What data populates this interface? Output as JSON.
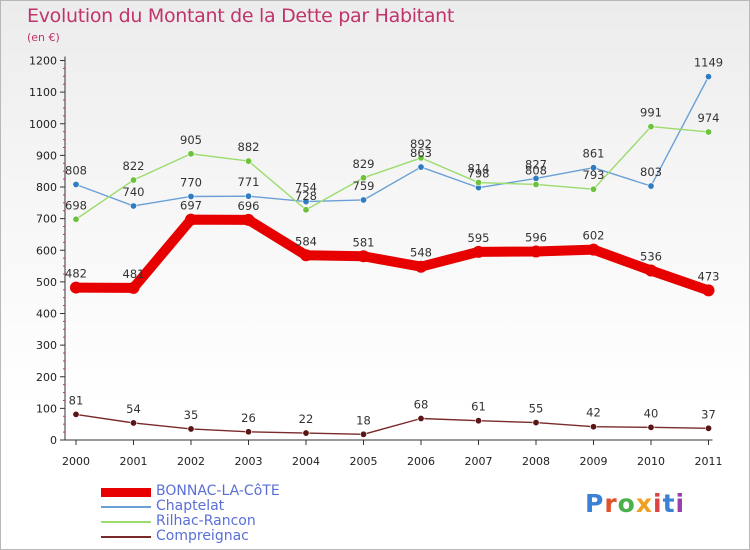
{
  "title": "Evolution du Montant de la Dette par Habitant",
  "subtitle": "(en €)",
  "brand": "Proxiti",
  "brand_colors": [
    "#3b82d6",
    "#e0522a",
    "#4ab04a",
    "#f0a020",
    "#d44",
    "#3b82d6",
    "#9a3fb0"
  ],
  "chart_data": {
    "type": "line",
    "x": [
      "2000",
      "2001",
      "2002",
      "2003",
      "2004",
      "2005",
      "2006",
      "2007",
      "2008",
      "2009",
      "2010",
      "2011"
    ],
    "ylim": [
      0,
      1200
    ],
    "yticks": [
      "0",
      "100",
      "200",
      "300",
      "400",
      "500",
      "600",
      "700",
      "800",
      "900",
      "1000",
      "1100",
      "1200"
    ],
    "grid": false,
    "legend_placement": "bottom-left",
    "series": [
      {
        "name": "Chaptelat",
        "color": "#6aa0d6",
        "marker": "#2f7cc0",
        "values": [
          808,
          740,
          770,
          771,
          754,
          759,
          863,
          798,
          827,
          861,
          803,
          1149
        ],
        "labels": [
          "808",
          "740",
          "770",
          "771",
          "754",
          "759",
          "863",
          "798",
          "827",
          "861",
          "803",
          "1149"
        ]
      },
      {
        "name": "Rilhac-Rancon",
        "color": "#9bdc6c",
        "marker": "#6cc23c",
        "values": [
          698,
          822,
          905,
          882,
          728,
          829,
          892,
          814,
          808,
          793,
          991,
          974
        ],
        "labels": [
          "698",
          "822",
          "905",
          "882",
          "728",
          "829",
          "892",
          "814",
          "808",
          "793",
          "991",
          "974"
        ]
      },
      {
        "name": "BONNAC-LA-CôTE",
        "color": "#e60000",
        "marker": "#e60000",
        "values": [
          482,
          481,
          697,
          696,
          584,
          581,
          548,
          595,
          596,
          602,
          536,
          473
        ],
        "labels": [
          "482",
          "481",
          "697",
          "696",
          "584",
          "581",
          "548",
          "595",
          "596",
          "602",
          "536",
          "473"
        ]
      },
      {
        "name": "Compreignac",
        "color": "#7a2a2a",
        "marker": "#5a1616",
        "values": [
          81,
          54,
          35,
          26,
          22,
          18,
          68,
          61,
          55,
          42,
          40,
          37
        ],
        "labels": [
          "81",
          "54",
          "35",
          "26",
          "22",
          "18",
          "68",
          "61",
          "55",
          "42",
          "40",
          "37"
        ]
      }
    ],
    "legend": [
      "BONNAC-LA-CôTE",
      "Chaptelat",
      "Rilhac-Rancon",
      "Compreignac"
    ]
  }
}
